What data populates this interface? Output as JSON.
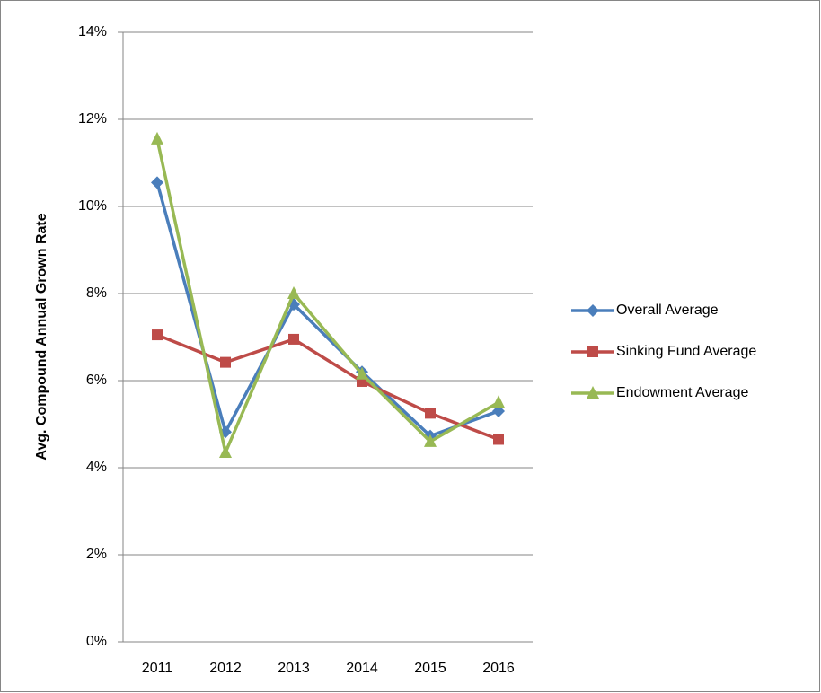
{
  "chart_data": {
    "type": "line",
    "y_label": "Avg. Compound Annual Grown Rate",
    "categories": [
      "2011",
      "2012",
      "2013",
      "2014",
      "2015",
      "2016"
    ],
    "series": [
      {
        "name": "Overall Average",
        "color": "#4a7ebb",
        "marker": "diamond",
        "values": [
          10.55,
          4.82,
          7.75,
          6.2,
          4.73,
          5.3
        ]
      },
      {
        "name": "Sinking Fund Average",
        "color": "#be4b48",
        "marker": "square",
        "values": [
          7.05,
          6.42,
          6.95,
          5.98,
          5.25,
          4.65
        ]
      },
      {
        "name": "Endowment Average",
        "color": "#98b954",
        "marker": "triangle",
        "values": [
          11.55,
          4.35,
          8.0,
          6.15,
          4.6,
          5.5
        ]
      }
    ],
    "ylim": [
      0,
      14
    ],
    "yticks": [
      {
        "value": 0,
        "label": "0%"
      },
      {
        "value": 2,
        "label": "2%"
      },
      {
        "value": 4,
        "label": "4%"
      },
      {
        "value": 6,
        "label": "6%"
      },
      {
        "value": 8,
        "label": "8%"
      },
      {
        "value": 10,
        "label": "10%"
      },
      {
        "value": 12,
        "label": "12%"
      },
      {
        "value": 14,
        "label": "14%"
      }
    ],
    "grid": true,
    "legend": "right"
  }
}
